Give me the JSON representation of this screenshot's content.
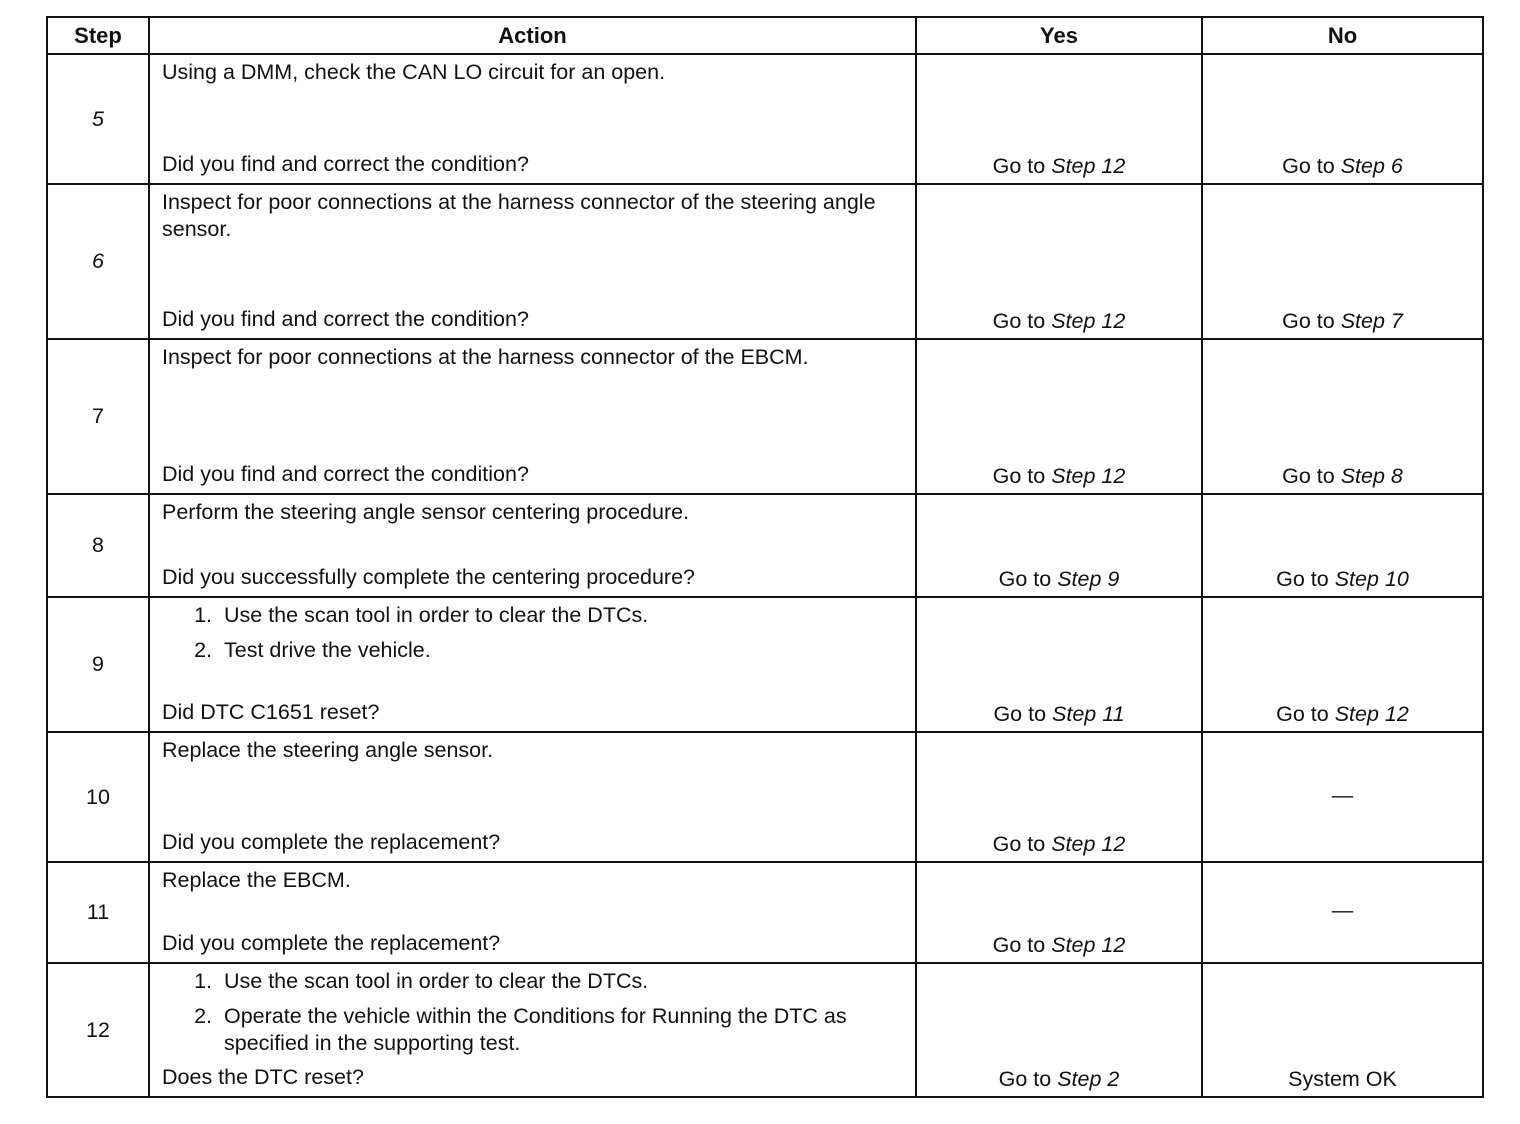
{
  "headers": {
    "step": "Step",
    "action": "Action",
    "yes": "Yes",
    "no": "No"
  },
  "goto_prefix": "Go to",
  "rows": [
    {
      "step": "5",
      "italic": true,
      "h": 130,
      "text": "Using a DMM, check the CAN LO circuit for an open.",
      "list": [],
      "question": "Did you find and correct the condition?",
      "yes": "Step 12",
      "no": "Step 6"
    },
    {
      "step": "6",
      "italic": true,
      "h": 155,
      "text": "Inspect for poor connections at the harness connector of the steering angle sensor.",
      "list": [],
      "question": "Did you find and correct the condition?",
      "yes": "Step 12",
      "no": "Step 7"
    },
    {
      "step": "7",
      "italic": false,
      "h": 155,
      "text": "Inspect for poor connections at the harness connector of the EBCM.",
      "list": [],
      "question": "Did you find and correct the condition?",
      "yes": "Step 12",
      "no": "Step 8"
    },
    {
      "step": "8",
      "italic": false,
      "h": 103,
      "text": "Perform the steering angle sensor centering procedure.",
      "list": [],
      "question": "Did you successfully complete the centering procedure?",
      "yes": "Step 9",
      "no": "Step 10"
    },
    {
      "step": "9",
      "italic": false,
      "h": 135,
      "text": "",
      "list": [
        "Use the scan tool in order to clear the DTCs.",
        "Test drive the vehicle."
      ],
      "question": "Did DTC C1651 reset?",
      "yes": "Step 11",
      "no": "Step 12"
    },
    {
      "step": "10",
      "italic": false,
      "h": 130,
      "text": "Replace the steering angle sensor.",
      "list": [],
      "question": "Did you complete the replacement?",
      "yes": "Step 12",
      "no_text": "—"
    },
    {
      "step": "11",
      "italic": false,
      "h": 101,
      "text": "Replace the EBCM.",
      "list": [],
      "question": "Did you complete the replacement?",
      "yes": "Step 12",
      "no_text": "—"
    },
    {
      "step": "12",
      "italic": false,
      "h": 133,
      "text": "",
      "list": [
        "Use the scan tool in order to clear the DTCs.",
        "Operate the vehicle within the Conditions for Running the DTC as specified in the supporting test."
      ],
      "question": "Does the DTC reset?",
      "yes": "Step 2",
      "no_text": "System OK"
    }
  ]
}
